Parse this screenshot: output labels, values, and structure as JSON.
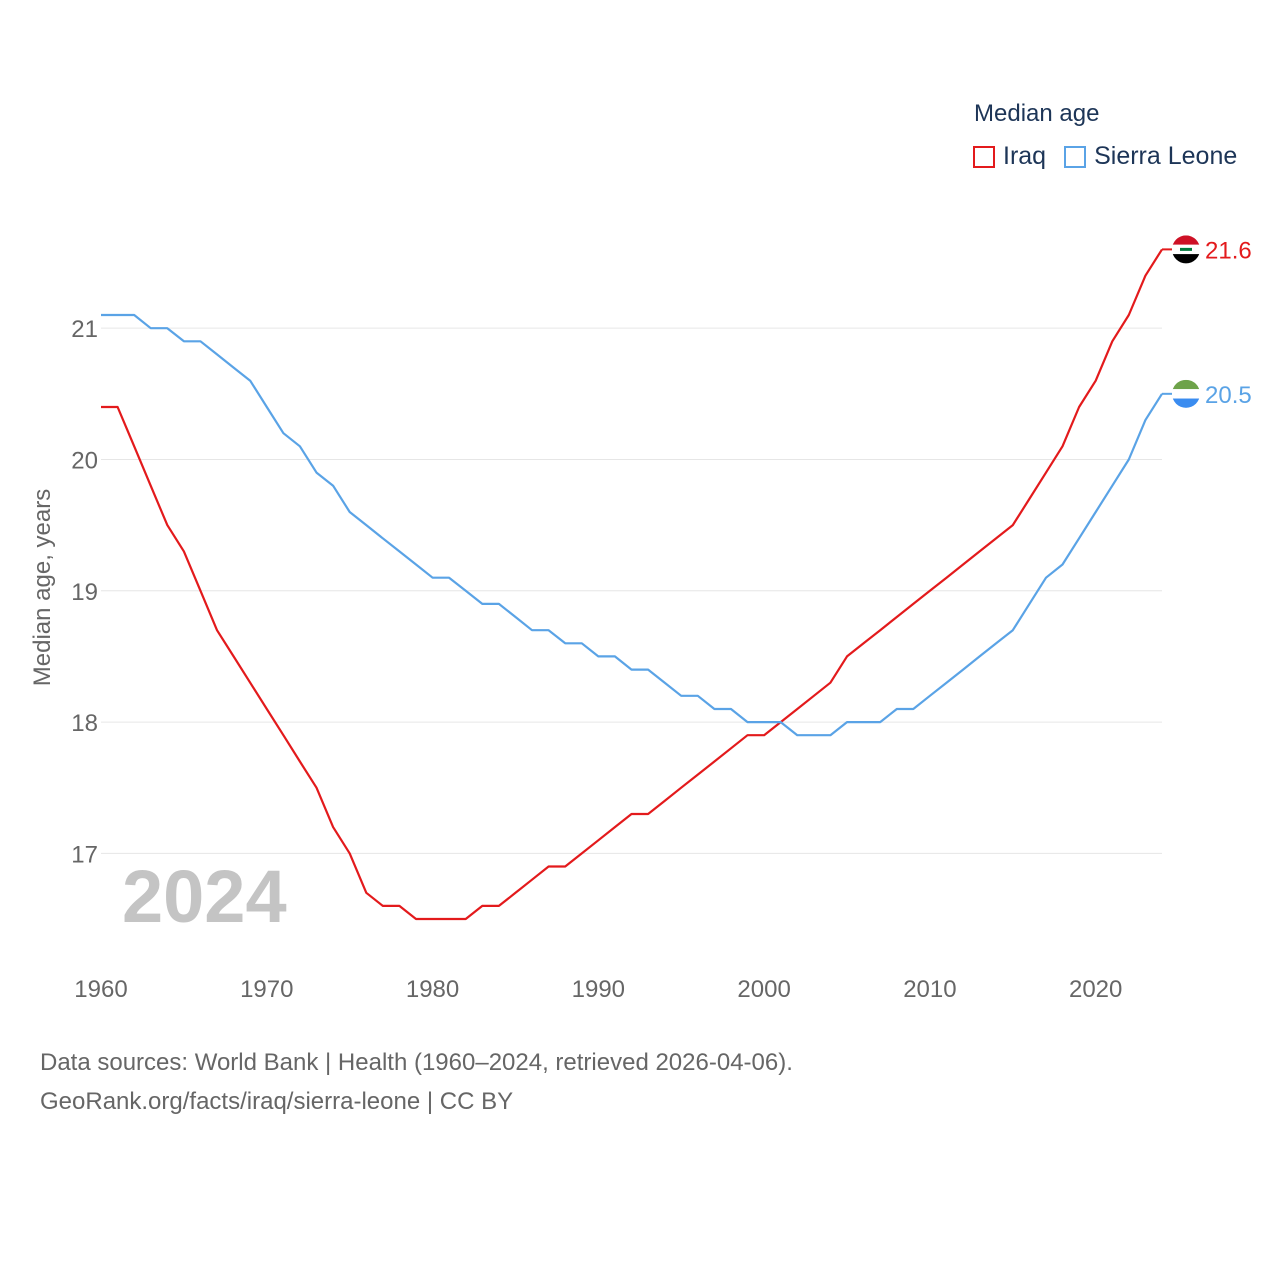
{
  "legend": {
    "title": "Median age",
    "items": [
      "Iraq",
      "Sierra Leone"
    ]
  },
  "source": {
    "line1": "Data sources: World Bank | Health (1960–2024, retrieved 2026-04-06).",
    "line2": "GeoRank.org/facts/iraq/sierra-leone | CC BY"
  },
  "chart_data": {
    "type": "line",
    "title": "Median age",
    "xlabel": "",
    "ylabel": "Median age, years",
    "year_label": "2024",
    "xlim": [
      1960,
      2024
    ],
    "ylim": [
      16.15,
      21.9
    ],
    "x_ticks": [
      1960,
      1970,
      1980,
      1990,
      2000,
      2010,
      2020
    ],
    "y_ticks": [
      17,
      18,
      19,
      20,
      21
    ],
    "grid": true,
    "legend_position": "top-right",
    "x": [
      1960,
      1961,
      1962,
      1963,
      1964,
      1965,
      1966,
      1967,
      1968,
      1969,
      1970,
      1971,
      1972,
      1973,
      1974,
      1975,
      1976,
      1977,
      1978,
      1979,
      1980,
      1981,
      1982,
      1983,
      1984,
      1985,
      1986,
      1987,
      1988,
      1989,
      1990,
      1991,
      1992,
      1993,
      1994,
      1995,
      1996,
      1997,
      1998,
      1999,
      2000,
      2001,
      2002,
      2003,
      2004,
      2005,
      2006,
      2007,
      2008,
      2009,
      2010,
      2011,
      2012,
      2013,
      2014,
      2015,
      2016,
      2017,
      2018,
      2019,
      2020,
      2021,
      2022,
      2023,
      2024
    ],
    "series": [
      {
        "name": "Iraq",
        "color": "#e31a1c",
        "end_label": "21.6",
        "flag": "iraq-flag",
        "values": [
          20.4,
          20.4,
          20.1,
          19.8,
          19.5,
          19.3,
          19.0,
          18.7,
          18.5,
          18.3,
          18.1,
          17.9,
          17.7,
          17.5,
          17.2,
          17.0,
          16.7,
          16.6,
          16.6,
          16.5,
          16.5,
          16.5,
          16.5,
          16.6,
          16.6,
          16.7,
          16.8,
          16.9,
          16.9,
          17.0,
          17.1,
          17.2,
          17.3,
          17.3,
          17.4,
          17.5,
          17.6,
          17.7,
          17.8,
          17.9,
          17.9,
          18.0,
          18.1,
          18.2,
          18.3,
          18.5,
          18.6,
          18.7,
          18.8,
          18.9,
          19.0,
          19.1,
          19.2,
          19.3,
          19.4,
          19.5,
          19.7,
          19.9,
          20.1,
          20.4,
          20.6,
          20.9,
          21.1,
          21.4,
          21.6
        ]
      },
      {
        "name": "Sierra Leone",
        "color": "#5aa3e6",
        "end_label": "20.5",
        "flag": "sierra-leone-flag",
        "values": [
          21.1,
          21.1,
          21.1,
          21.0,
          21.0,
          20.9,
          20.9,
          20.8,
          20.7,
          20.6,
          20.4,
          20.2,
          20.1,
          19.9,
          19.8,
          19.6,
          19.5,
          19.4,
          19.3,
          19.2,
          19.1,
          19.1,
          19.0,
          18.9,
          18.9,
          18.8,
          18.7,
          18.7,
          18.6,
          18.6,
          18.5,
          18.5,
          18.4,
          18.4,
          18.3,
          18.2,
          18.2,
          18.1,
          18.1,
          18.0,
          18.0,
          18.0,
          17.9,
          17.9,
          17.9,
          18.0,
          18.0,
          18.0,
          18.1,
          18.1,
          18.2,
          18.3,
          18.4,
          18.5,
          18.6,
          18.7,
          18.9,
          19.1,
          19.2,
          19.4,
          19.6,
          19.8,
          20.0,
          20.3,
          20.5
        ]
      }
    ]
  }
}
